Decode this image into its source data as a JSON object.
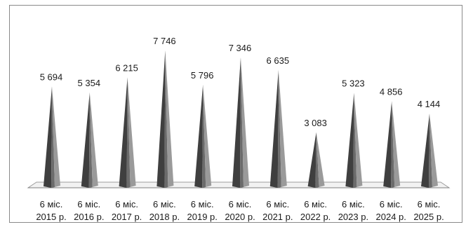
{
  "chart_data": {
    "type": "bar",
    "bar_shape": "cone-3d",
    "categories": [
      [
        "6 міс.",
        "2015 р."
      ],
      [
        "6 міс.",
        "2016 р."
      ],
      [
        "6 міс.",
        "2017 р."
      ],
      [
        "6 міс.",
        "2018 р."
      ],
      [
        "6 міс.",
        "2019 р."
      ],
      [
        "6 міс.",
        "2020 р."
      ],
      [
        "6 міс.",
        "2021 р."
      ],
      [
        "6 міс.",
        "2022 р."
      ],
      [
        "6 міс.",
        "2023 р."
      ],
      [
        "6 міс.",
        "2024 р."
      ],
      [
        "6 міс.",
        "2025 р."
      ]
    ],
    "values": [
      5694,
      5354,
      6215,
      7746,
      5796,
      7346,
      6635,
      3083,
      5323,
      4856,
      4144
    ],
    "value_labels": [
      "5 694",
      "5 354",
      "6 215",
      "7 746",
      "5 796",
      "7 346",
      "6 635",
      "3 083",
      "5 323",
      "4 856",
      "4 144"
    ],
    "ylim": [
      0,
      7746
    ],
    "grid": false,
    "legend": "none",
    "colors": {
      "cone_dark": "#3f3f3f",
      "cone_mid": "#6b6b6b",
      "cone_light": "#9a9a9a",
      "floor_fill": "#f2f2f2",
      "floor_stroke": "#9c9c9c"
    }
  }
}
